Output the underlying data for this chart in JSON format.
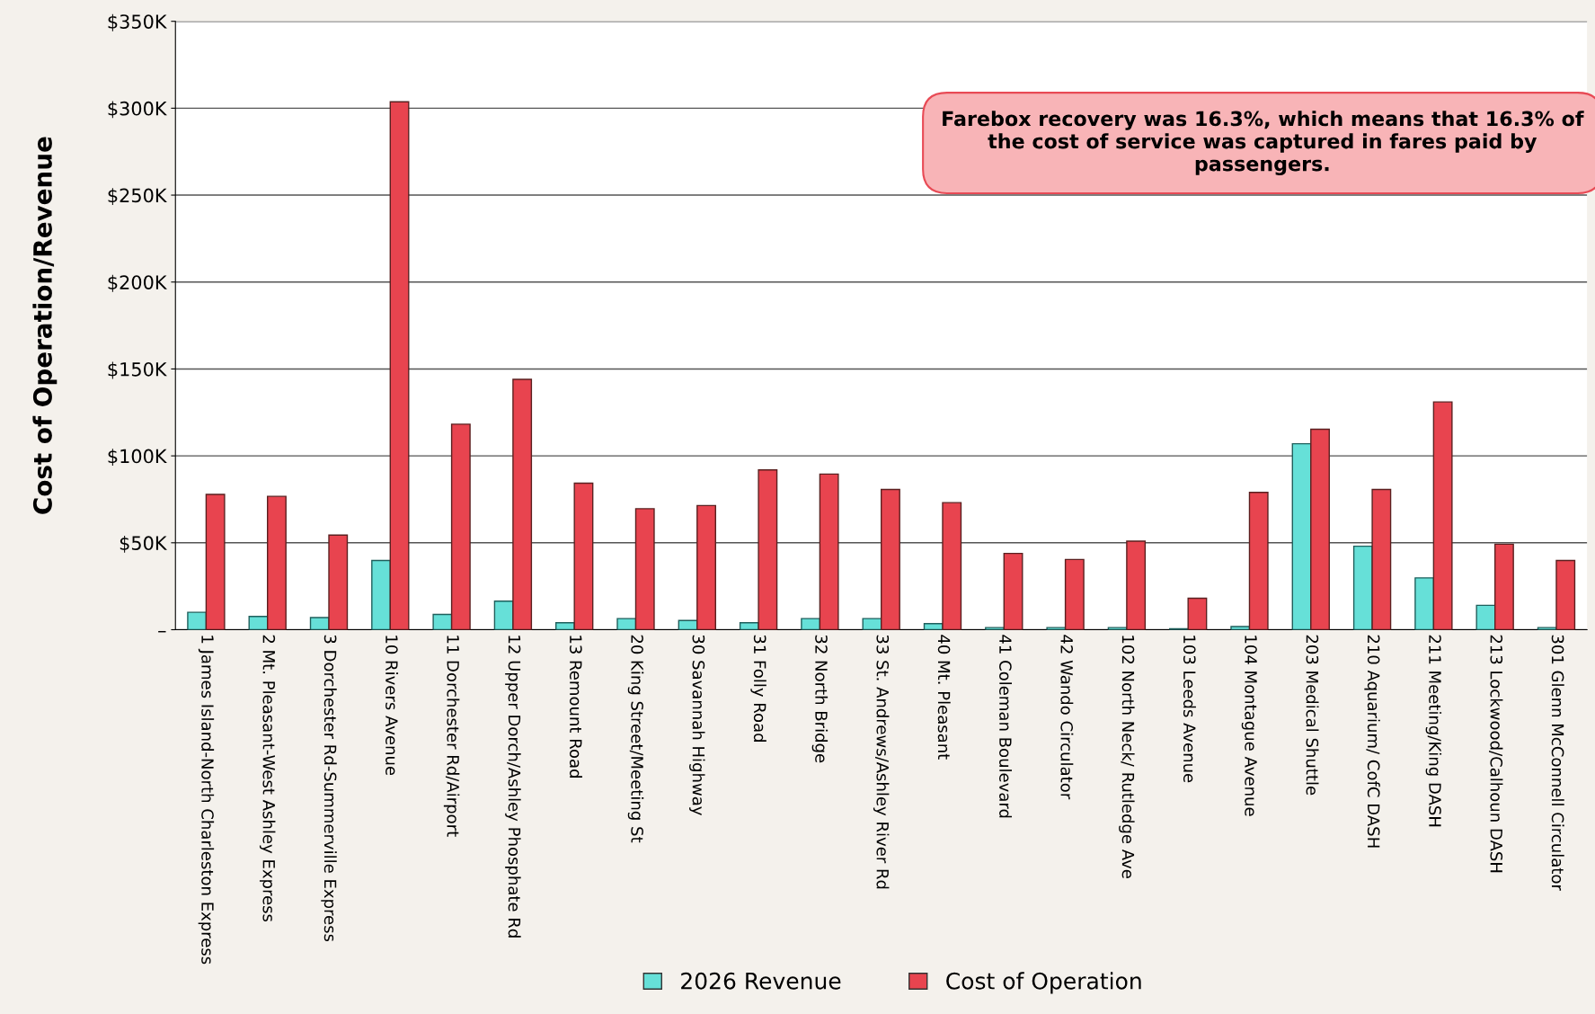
{
  "chart_data": {
    "type": "bar",
    "ylabel": "Cost of Operation/Revenue",
    "categories": [
      "1 James Island-North Charleston Express",
      "2 Mt. Pleasant-West Ashley Express",
      "3 Dorchester Rd-Summerville Express",
      "10 Rivers Avenue",
      "11 Dorchester Rd/Airport",
      "12 Upper Dorch/Ashley Phosphate Rd",
      "13 Remount Road",
      "20 King Street/Meeting St",
      "30 Savannah Highway",
      "31 Folly Road",
      "32 North Bridge",
      "33 St. Andrews/Ashley River Rd",
      "40 Mt. Pleasant",
      "41 Coleman Boulevard",
      "42 Wando Circulator",
      "102 North Neck/ Rutledge Ave",
      "103 Leeds Avenue",
      "104 Montague Avenue",
      "203 Medical Shuttle",
      "210 Aquarium/ CofC DASH",
      "211 Meeting/King DASH",
      "213 Lockwood/Calhoun DASH",
      "301 Glenn McConnell Circulator"
    ],
    "series": [
      {
        "name": "2026 Revenue",
        "color": "#66e0d8",
        "values": [
          10,
          7.6,
          7,
          39.8,
          8.8,
          16.4,
          4,
          6.4,
          5.3,
          4,
          6.4,
          6.4,
          3.5,
          1.2,
          1.2,
          1.2,
          0.6,
          1.8,
          107,
          48,
          29.8,
          14,
          1.2
        ]
      },
      {
        "name": "Cost of Operation",
        "color": "#e8444f",
        "values": [
          77.8,
          76.7,
          54.4,
          303.7,
          118.2,
          144,
          84.3,
          69.6,
          71.4,
          91.9,
          89.5,
          80.7,
          73.1,
          43.9,
          40.4,
          50.9,
          18.1,
          79,
          115.3,
          80.7,
          131,
          49.2,
          39.8
        ]
      }
    ],
    "ylim": [
      0,
      350
    ],
    "yticks": [
      {
        "value": 0,
        "label": "–"
      },
      {
        "value": 50,
        "label": "$50K"
      },
      {
        "value": 100,
        "label": "$100K"
      },
      {
        "value": 150,
        "label": "$150K"
      },
      {
        "value": 200,
        "label": "$200K"
      },
      {
        "value": 250,
        "label": "$250K"
      },
      {
        "value": 300,
        "label": "$300K"
      },
      {
        "value": 350,
        "label": "$350K"
      }
    ],
    "grid": "y",
    "legend": "bottom",
    "annotations": [
      "Farebox recovery was 16.3%, which means that 16.3% of the cost of service was captured in fares paid by passengers."
    ]
  }
}
